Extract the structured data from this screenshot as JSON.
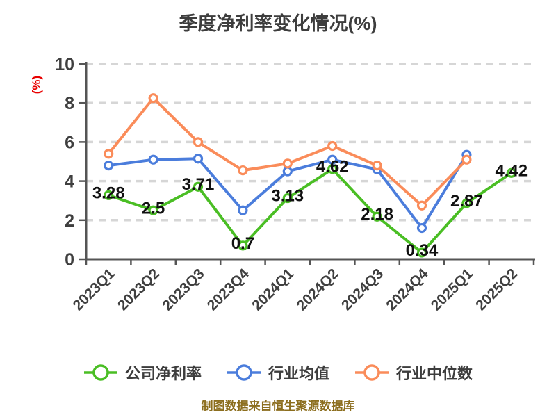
{
  "title": "季度净利率变化情况(%)",
  "y_axis_unit_label": "(%)",
  "source_note": "制图数据来自恒生聚源数据库",
  "chart_data": {
    "type": "line",
    "title": "季度净利率变化情况(%)",
    "categories": [
      "2023Q1",
      "2023Q2",
      "2023Q3",
      "2023Q4",
      "2024Q1",
      "2024Q2",
      "2024Q3",
      "2024Q4",
      "2025Q1",
      "2025Q2"
    ],
    "series": [
      {
        "key": "company-net-margin",
        "name": "公司净利率",
        "color": "#4abe24",
        "values": [
          3.28,
          2.5,
          3.71,
          0.7,
          3.13,
          4.62,
          2.18,
          0.34,
          2.87,
          4.42
        ],
        "labels": [
          "3.28",
          "2.5",
          "3.71",
          "0.7",
          "3.13",
          "4.62",
          "2.18",
          "0.34",
          "2.87",
          "4.42"
        ]
      },
      {
        "key": "industry-average",
        "name": "行业均值",
        "color": "#4b7ddc",
        "values": [
          4.8,
          5.1,
          5.15,
          2.5,
          4.5,
          5.1,
          4.6,
          1.6,
          5.35,
          null
        ],
        "labels": null
      },
      {
        "key": "industry-median",
        "name": "行业中位数",
        "color": "#fa8c5a",
        "values": [
          5.4,
          8.25,
          6.0,
          4.55,
          4.9,
          5.8,
          4.8,
          2.75,
          5.1,
          null
        ],
        "labels": null
      }
    ],
    "ylabel": "(%)",
    "ylim": [
      0,
      10
    ],
    "yticks": [
      0,
      2,
      4,
      6,
      8,
      10
    ],
    "grid": "horizontal-dashed",
    "legend_position": "bottom",
    "x_tick_rotation": 45
  },
  "style_colors": {
    "axis": "#555555",
    "grid": "#d6d6d6",
    "tick_label": "#3f3f3f",
    "data_label": "#111111",
    "title": "#3d3d3d",
    "y_unit": "#e80000",
    "source": "#8c6e1e",
    "marker_fill": "#ffffff"
  }
}
